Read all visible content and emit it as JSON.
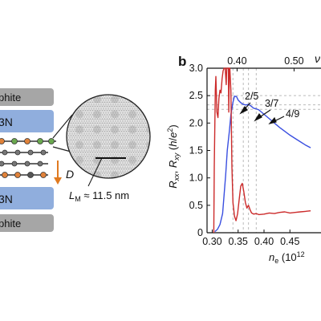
{
  "left_panel": {
    "layers": [
      "phite",
      "3N",
      "3N",
      "phite"
    ],
    "d_label": "D",
    "lm_label_main": "L",
    "lm_label_sub": "M",
    "lm_label_value": "≈ 11.5 nm",
    "colors": {
      "graphite": "#a6a6a6",
      "hbn": "#90aedd",
      "orange_atom": "#e0823a",
      "green_atom": "#6aa84f",
      "dark_atom": "#555555",
      "arrow": "#e07a20"
    }
  },
  "panel_b": {
    "panel_label": "b",
    "top_axis_symbol": "ν",
    "top_axis_ticks": [
      "0.40",
      "0.50"
    ],
    "annotations": [
      "2/5",
      "3/7",
      "4/9"
    ]
  },
  "chart_data": {
    "type": "line",
    "xlabel_main": "n",
    "xlabel_sub": "e",
    "xlabel_unit": "(10",
    "xlabel_exp": "12",
    "ylabel": "R_xx, R_xy (h/e^2)",
    "ylim": [
      0,
      3.0
    ],
    "xlim": [
      0.29,
      0.51
    ],
    "x_ticks": [
      "0.30",
      "0.35",
      "0.40",
      "0.45"
    ],
    "y_ticks": [
      "0",
      "0.5",
      "1.0",
      "1.5",
      "2.0",
      "2.5",
      "3.0"
    ],
    "series": [
      {
        "color": "#3a4fe0",
        "x": [
          0.305,
          0.31,
          0.315,
          0.32,
          0.323,
          0.326,
          0.329,
          0.333,
          0.336,
          0.34,
          0.343,
          0.347,
          0.35,
          0.355,
          0.36,
          0.365,
          0.37,
          0.375,
          0.38,
          0.385,
          0.39,
          0.4,
          0.41,
          0.42,
          0.43,
          0.44,
          0.45,
          0.46,
          0.47,
          0.48,
          0.49
        ],
        "values": [
          0.02,
          0.06,
          0.15,
          0.35,
          0.7,
          1.05,
          1.5,
          1.85,
          2.15,
          2.38,
          2.49,
          2.48,
          2.42,
          2.37,
          2.34,
          2.33,
          2.34,
          2.31,
          2.27,
          2.26,
          2.24,
          2.16,
          2.08,
          2.0,
          1.92,
          1.85,
          1.78,
          1.72,
          1.66,
          1.6,
          1.55
        ]
      },
      {
        "color": "#cc2b2b",
        "x": [
          0.303,
          0.304,
          0.306,
          0.307,
          0.309,
          0.311,
          0.313,
          0.315,
          0.317,
          0.319,
          0.321,
          0.323,
          0.325,
          0.327,
          0.328,
          0.329,
          0.331,
          0.332,
          0.333,
          0.334,
          0.336,
          0.338,
          0.34,
          0.343,
          0.346,
          0.349,
          0.352,
          0.355,
          0.358,
          0.361,
          0.364,
          0.367,
          0.37,
          0.373,
          0.376,
          0.38,
          0.385,
          0.39,
          0.4,
          0.41,
          0.42,
          0.43,
          0.44,
          0.45,
          0.46,
          0.47,
          0.48,
          0.49
        ],
        "values": [
          0.0,
          1.2,
          2.6,
          2.85,
          2.2,
          2.1,
          2.45,
          2.6,
          2.55,
          2.8,
          2.95,
          3.0,
          3.0,
          2.7,
          3.0,
          3.0,
          3.0,
          2.2,
          3.0,
          3.0,
          2.6,
          1.2,
          0.55,
          0.3,
          0.22,
          0.35,
          0.6,
          0.85,
          0.9,
          0.75,
          0.55,
          0.45,
          0.5,
          0.42,
          0.36,
          0.34,
          0.35,
          0.33,
          0.34,
          0.36,
          0.35,
          0.37,
          0.38,
          0.36,
          0.37,
          0.38,
          0.39,
          0.4
        ]
      }
    ],
    "hlines": [
      2.5,
      2.333,
      2.25
    ],
    "vlines": [
      0.34,
      0.36,
      0.37,
      0.385
    ],
    "grid": false
  }
}
